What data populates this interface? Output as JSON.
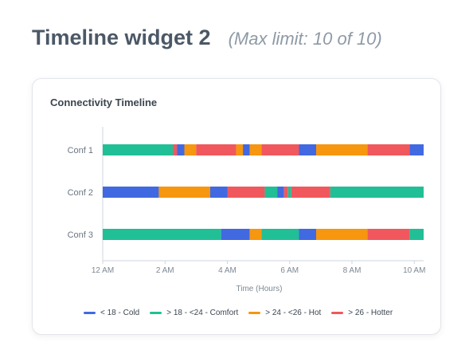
{
  "header": {
    "title": "Timeline widget 2",
    "subtitle": "(Max limit: 10 of 10)"
  },
  "card": {
    "title": "Connectivity Timeline"
  },
  "colors": {
    "cold": "#4169e1",
    "comfort": "#21bf96",
    "hot": "#f7960f",
    "hotter": "#f0585d"
  },
  "legend": [
    {
      "key": "cold",
      "label": "< 18 - Cold"
    },
    {
      "key": "comfort",
      "label": "> 18 - <24 - Comfort"
    },
    {
      "key": "hot",
      "label": "> 24 - <26 - Hot"
    },
    {
      "key": "hotter",
      "label": "> 26 - Hotter"
    }
  ],
  "chart_data": {
    "type": "timeline",
    "title": "Connectivity Timeline",
    "xlabel": "Time (Hours)",
    "xlim": [
      0,
      10.3
    ],
    "x_ticks": [
      {
        "value": 0,
        "label": "12 AM"
      },
      {
        "value": 2,
        "label": "2 AM"
      },
      {
        "value": 4,
        "label": "4 AM"
      },
      {
        "value": 6,
        "label": "6 AM"
      },
      {
        "value": 8,
        "label": "8 AM"
      },
      {
        "value": 10,
        "label": "10 AM"
      }
    ],
    "rows": [
      {
        "name": "Conf 1",
        "segments": [
          {
            "start": 0.0,
            "end": 2.25,
            "state": "comfort"
          },
          {
            "start": 2.25,
            "end": 2.38,
            "state": "hotter"
          },
          {
            "start": 2.38,
            "end": 2.62,
            "state": "cold"
          },
          {
            "start": 2.62,
            "end": 3.0,
            "state": "hot"
          },
          {
            "start": 3.0,
            "end": 4.28,
            "state": "hotter"
          },
          {
            "start": 4.28,
            "end": 4.5,
            "state": "hot"
          },
          {
            "start": 4.5,
            "end": 4.72,
            "state": "cold"
          },
          {
            "start": 4.72,
            "end": 5.1,
            "state": "hot"
          },
          {
            "start": 5.1,
            "end": 6.3,
            "state": "hotter"
          },
          {
            "start": 6.3,
            "end": 6.85,
            "state": "cold"
          },
          {
            "start": 6.85,
            "end": 8.5,
            "state": "hot"
          },
          {
            "start": 8.5,
            "end": 9.85,
            "state": "hotter"
          },
          {
            "start": 9.85,
            "end": 10.3,
            "state": "cold"
          }
        ]
      },
      {
        "name": "Conf 2",
        "segments": [
          {
            "start": 0.0,
            "end": 1.8,
            "state": "cold"
          },
          {
            "start": 1.8,
            "end": 3.45,
            "state": "hot"
          },
          {
            "start": 3.45,
            "end": 4.0,
            "state": "cold"
          },
          {
            "start": 4.0,
            "end": 5.2,
            "state": "hotter"
          },
          {
            "start": 5.2,
            "end": 5.6,
            "state": "comfort"
          },
          {
            "start": 5.6,
            "end": 5.82,
            "state": "cold"
          },
          {
            "start": 5.82,
            "end": 5.95,
            "state": "hotter"
          },
          {
            "start": 5.95,
            "end": 6.05,
            "state": "comfort"
          },
          {
            "start": 6.05,
            "end": 7.3,
            "state": "hotter"
          },
          {
            "start": 7.3,
            "end": 10.3,
            "state": "comfort"
          }
        ]
      },
      {
        "name": "Conf 3",
        "segments": [
          {
            "start": 0.0,
            "end": 3.8,
            "state": "comfort"
          },
          {
            "start": 3.8,
            "end": 4.72,
            "state": "cold"
          },
          {
            "start": 4.72,
            "end": 5.1,
            "state": "hot"
          },
          {
            "start": 5.1,
            "end": 6.3,
            "state": "comfort"
          },
          {
            "start": 6.3,
            "end": 6.85,
            "state": "cold"
          },
          {
            "start": 6.85,
            "end": 8.5,
            "state": "hot"
          },
          {
            "start": 8.5,
            "end": 9.85,
            "state": "hotter"
          },
          {
            "start": 9.85,
            "end": 10.3,
            "state": "comfort"
          }
        ]
      }
    ]
  }
}
